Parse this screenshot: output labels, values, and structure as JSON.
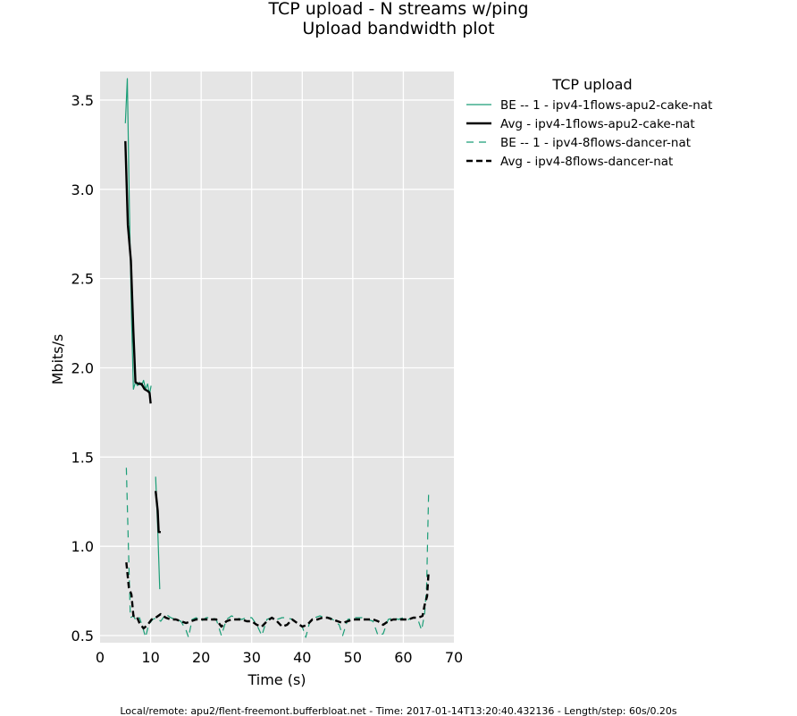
{
  "chart_data": {
    "type": "line",
    "title": "TCP upload - N streams w/ping",
    "subtitle": "Upload bandwidth plot",
    "xlabel": "Time (s)",
    "ylabel": "Mbits/s",
    "xlim": [
      0,
      70
    ],
    "ylim": [
      0.46,
      3.66
    ],
    "xticks": [
      0,
      10,
      20,
      30,
      40,
      50,
      60,
      70
    ],
    "yticks": [
      0.5,
      1.0,
      1.5,
      2.0,
      2.5,
      3.0,
      3.5
    ],
    "xtick_labels": [
      "0",
      "10",
      "20",
      "30",
      "40",
      "50",
      "60",
      "70"
    ],
    "ytick_labels": [
      "0.5",
      "1.0",
      "1.5",
      "2.0",
      "2.5",
      "3.0",
      "3.5"
    ],
    "grid": true,
    "legend_title": "TCP upload",
    "legend_position": "outside-right",
    "series": [
      {
        "name": "BE -- 1 - ipv4-1flows-apu2-cake-nat",
        "color": "#1b9e77",
        "style": "solid",
        "width": 1.2,
        "segments": [
          [
            [
              5.0,
              3.37
            ],
            [
              5.4,
              3.62
            ],
            [
              5.8,
              2.9
            ],
            [
              6.2,
              2.3
            ],
            [
              6.6,
              1.88
            ],
            [
              7.0,
              1.92
            ],
            [
              7.4,
              1.9
            ],
            [
              7.8,
              1.92
            ],
            [
              8.2,
              1.9
            ],
            [
              8.6,
              1.93
            ],
            [
              9.0,
              1.88
            ],
            [
              9.4,
              1.91
            ],
            [
              9.8,
              1.85
            ],
            [
              10.1,
              1.9
            ]
          ],
          [
            [
              11.0,
              1.39
            ],
            [
              11.4,
              1.1
            ],
            [
              11.8,
              0.76
            ]
          ]
        ]
      },
      {
        "name": "Avg - ipv4-1flows-apu2-cake-nat",
        "color": "#000000",
        "style": "solid",
        "width": 2.4,
        "segments": [
          [
            [
              5.0,
              3.27
            ],
            [
              5.5,
              2.8
            ],
            [
              6.1,
              2.6
            ],
            [
              6.6,
              2.2
            ],
            [
              7.0,
              1.92
            ],
            [
              7.6,
              1.91
            ],
            [
              8.2,
              1.91
            ],
            [
              8.8,
              1.88
            ],
            [
              9.4,
              1.87
            ],
            [
              9.8,
              1.86
            ],
            [
              10.0,
              1.8
            ]
          ],
          [
            [
              11.0,
              1.31
            ],
            [
              11.4,
              1.2
            ],
            [
              11.6,
              1.08
            ],
            [
              12.0,
              1.08
            ]
          ]
        ]
      },
      {
        "name": "BE -- 1 - ipv4-8flows-dancer-nat",
        "color": "#1b9e77",
        "style": "dashed",
        "width": 1.2,
        "segments": [
          [
            [
              5.2,
              1.44
            ],
            [
              5.6,
              1.0
            ],
            [
              6.0,
              0.6
            ],
            [
              6.6,
              0.61
            ],
            [
              7.2,
              0.58
            ],
            [
              7.8,
              0.6
            ],
            [
              8.4,
              0.55
            ],
            [
              9.0,
              0.49
            ],
            [
              9.6,
              0.56
            ],
            [
              10.4,
              0.59
            ],
            [
              11.2,
              0.6
            ],
            [
              12.0,
              0.58
            ],
            [
              13.0,
              0.62
            ],
            [
              14.0,
              0.6
            ],
            [
              15.0,
              0.59
            ],
            [
              16.0,
              0.58
            ],
            [
              17.0,
              0.53
            ],
            [
              17.5,
              0.49
            ],
            [
              18.2,
              0.59
            ],
            [
              19.0,
              0.6
            ],
            [
              20.0,
              0.58
            ],
            [
              21.0,
              0.6
            ],
            [
              22.0,
              0.6
            ],
            [
              23.0,
              0.59
            ],
            [
              24.0,
              0.5
            ],
            [
              25.0,
              0.59
            ],
            [
              26.0,
              0.61
            ],
            [
              27.0,
              0.6
            ],
            [
              28.0,
              0.59
            ],
            [
              29.0,
              0.6
            ],
            [
              30.0,
              0.6
            ],
            [
              31.0,
              0.56
            ],
            [
              32.0,
              0.5
            ],
            [
              33.0,
              0.59
            ],
            [
              34.0,
              0.6
            ],
            [
              35.0,
              0.59
            ],
            [
              36.0,
              0.6
            ],
            [
              37.0,
              0.6
            ],
            [
              38.0,
              0.59
            ],
            [
              39.0,
              0.57
            ],
            [
              40.0,
              0.55
            ],
            [
              40.7,
              0.49
            ],
            [
              41.5,
              0.58
            ],
            [
              42.5,
              0.6
            ],
            [
              43.5,
              0.61
            ],
            [
              44.5,
              0.6
            ],
            [
              45.5,
              0.6
            ],
            [
              46.5,
              0.58
            ],
            [
              47.3,
              0.56
            ],
            [
              48.0,
              0.5
            ],
            [
              49.0,
              0.59
            ],
            [
              50.0,
              0.6
            ],
            [
              51.0,
              0.6
            ],
            [
              52.0,
              0.6
            ],
            [
              53.0,
              0.59
            ],
            [
              54.0,
              0.58
            ],
            [
              55.0,
              0.5
            ],
            [
              56.0,
              0.51
            ],
            [
              57.0,
              0.59
            ],
            [
              58.0,
              0.6
            ],
            [
              59.0,
              0.59
            ],
            [
              60.0,
              0.6
            ],
            [
              61.0,
              0.59
            ],
            [
              62.0,
              0.6
            ],
            [
              63.0,
              0.58
            ],
            [
              63.6,
              0.53
            ],
            [
              64.2,
              0.62
            ],
            [
              64.6,
              0.78
            ],
            [
              65.0,
              1.3
            ]
          ]
        ]
      },
      {
        "name": "Avg - ipv4-8flows-dancer-nat",
        "color": "#000000",
        "style": "dashed",
        "width": 2.4,
        "segments": [
          [
            [
              5.2,
              0.91
            ],
            [
              5.7,
              0.77
            ],
            [
              6.2,
              0.73
            ],
            [
              6.6,
              0.61
            ],
            [
              7.2,
              0.61
            ],
            [
              7.8,
              0.57
            ],
            [
              8.6,
              0.54
            ],
            [
              9.4,
              0.56
            ],
            [
              10.2,
              0.59
            ],
            [
              11.0,
              0.6
            ],
            [
              12.0,
              0.62
            ],
            [
              13.0,
              0.6
            ],
            [
              14.0,
              0.59
            ],
            [
              15.0,
              0.59
            ],
            [
              16.0,
              0.58
            ],
            [
              17.0,
              0.57
            ],
            [
              18.0,
              0.58
            ],
            [
              19.0,
              0.59
            ],
            [
              20.0,
              0.59
            ],
            [
              21.0,
              0.59
            ],
            [
              22.0,
              0.59
            ],
            [
              23.0,
              0.59
            ],
            [
              24.0,
              0.55
            ],
            [
              25.0,
              0.58
            ],
            [
              26.0,
              0.59
            ],
            [
              27.0,
              0.59
            ],
            [
              28.0,
              0.59
            ],
            [
              29.0,
              0.58
            ],
            [
              30.0,
              0.58
            ],
            [
              31.0,
              0.56
            ],
            [
              32.0,
              0.55
            ],
            [
              33.0,
              0.58
            ],
            [
              34.0,
              0.6
            ],
            [
              35.0,
              0.58
            ],
            [
              36.0,
              0.55
            ],
            [
              37.0,
              0.56
            ],
            [
              38.0,
              0.59
            ],
            [
              39.0,
              0.57
            ],
            [
              40.0,
              0.55
            ],
            [
              41.0,
              0.56
            ],
            [
              42.0,
              0.59
            ],
            [
              43.0,
              0.59
            ],
            [
              44.0,
              0.6
            ],
            [
              45.0,
              0.6
            ],
            [
              46.0,
              0.59
            ],
            [
              47.0,
              0.58
            ],
            [
              48.0,
              0.57
            ],
            [
              49.0,
              0.58
            ],
            [
              50.0,
              0.59
            ],
            [
              51.0,
              0.59
            ],
            [
              52.0,
              0.59
            ],
            [
              53.0,
              0.59
            ],
            [
              54.0,
              0.59
            ],
            [
              55.0,
              0.58
            ],
            [
              56.0,
              0.56
            ],
            [
              57.0,
              0.58
            ],
            [
              58.0,
              0.59
            ],
            [
              59.0,
              0.59
            ],
            [
              60.0,
              0.59
            ],
            [
              61.0,
              0.59
            ],
            [
              62.0,
              0.6
            ],
            [
              63.0,
              0.6
            ],
            [
              63.8,
              0.61
            ],
            [
              64.2,
              0.67
            ],
            [
              64.7,
              0.72
            ],
            [
              65.0,
              0.86
            ]
          ]
        ]
      }
    ]
  },
  "footer": "Local/remote: apu2/flent-freemont.bufferbloat.net - Time: 2017-01-14T13:20:40.432136 - Length/step: 60s/0.20s"
}
